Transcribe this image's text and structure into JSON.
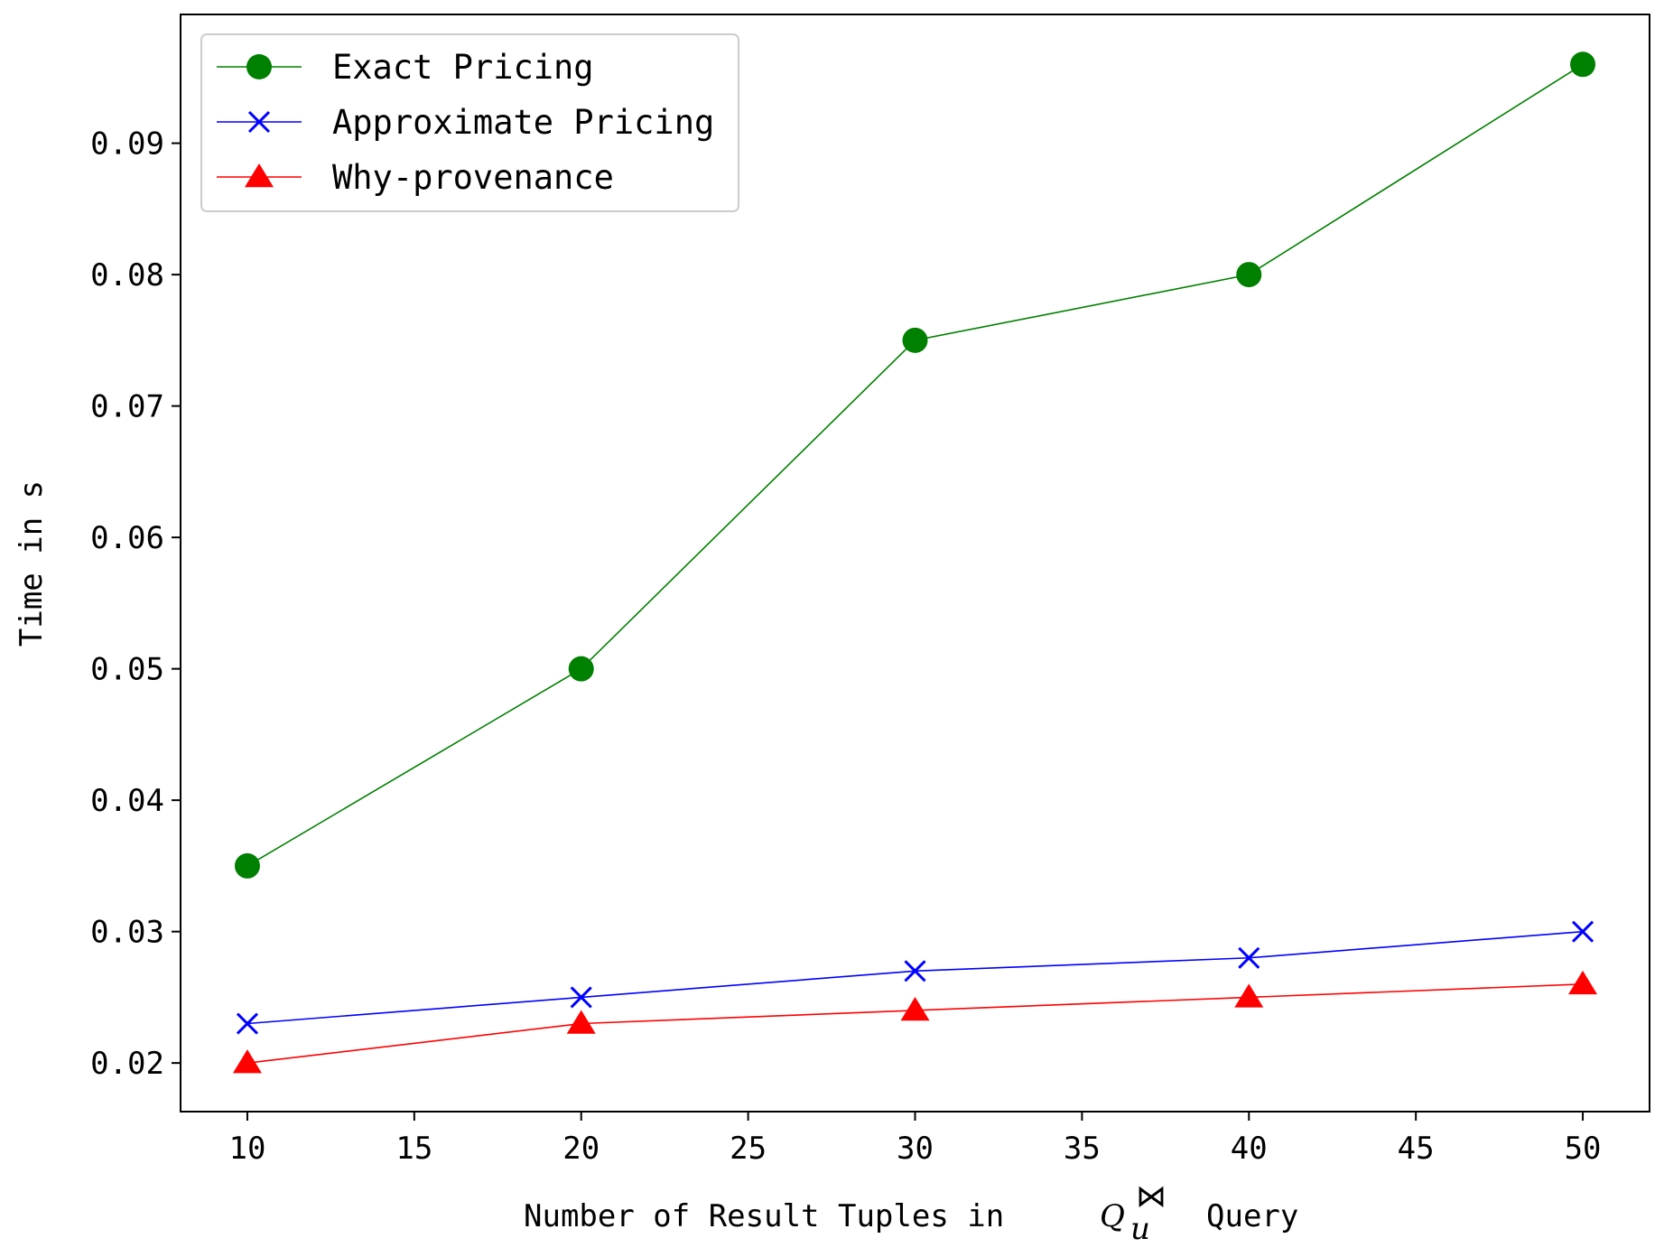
{
  "chart_data": {
    "type": "line",
    "title": "",
    "xlabel": {
      "before": "Number of Result Tuples in",
      "math_base": "Q",
      "math_sub": "u",
      "math_sup": "⋈",
      "after": "Query"
    },
    "ylabel": "Time in s",
    "x": [
      10,
      20,
      30,
      40,
      50
    ],
    "xlim": [
      8,
      52
    ],
    "ylim": [
      0.0163,
      0.0998
    ],
    "xticks": [
      10,
      15,
      20,
      25,
      30,
      35,
      40,
      45,
      50
    ],
    "xtick_labels": [
      "10",
      "15",
      "20",
      "25",
      "30",
      "35",
      "40",
      "45",
      "50"
    ],
    "yticks": [
      0.02,
      0.03,
      0.04,
      0.05,
      0.06,
      0.07,
      0.08,
      0.09
    ],
    "ytick_labels": [
      "0.02",
      "0.03",
      "0.04",
      "0.05",
      "0.06",
      "0.07",
      "0.08",
      "0.09"
    ],
    "grid": false,
    "legend_position": "top-left",
    "series": [
      {
        "name": "Exact Pricing",
        "color": "#008000",
        "marker": "circle",
        "values": [
          0.035,
          0.05,
          0.075,
          0.08,
          0.096
        ]
      },
      {
        "name": "Approximate Pricing",
        "color": "#0000ff",
        "marker": "x",
        "values": [
          0.023,
          0.025,
          0.027,
          0.028,
          0.03
        ]
      },
      {
        "name": "Why-provenance",
        "color": "#ff0000",
        "marker": "triangle",
        "values": [
          0.02,
          0.023,
          0.024,
          0.025,
          0.026
        ]
      }
    ]
  }
}
